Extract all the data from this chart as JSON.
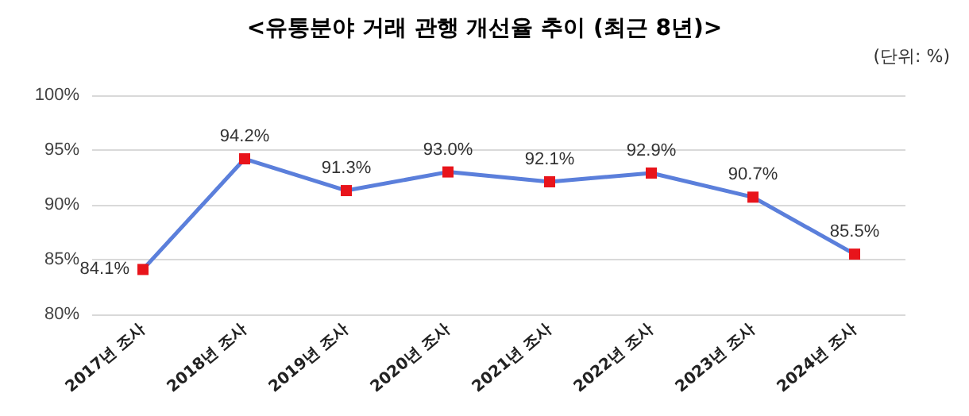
{
  "chart_data": {
    "type": "line",
    "title": "<유통분야 거래 관행 개선율 추이 (최근 8년)>",
    "annotations": [
      "(단위: %)"
    ],
    "categories": [
      "2017년 조사",
      "2018년 조사",
      "2019년 조사",
      "2020년 조사",
      "2021년 조사",
      "2022년 조사",
      "2023년 조사",
      "2024년 조사"
    ],
    "series": [
      {
        "color": "#5b7fdb",
        "colors": [
          "#e8141b",
          "#e8141b",
          "#e8141b",
          "#e8141b",
          "#e8141b",
          "#e8141b",
          "#e8141b",
          "#e8141b"
        ],
        "values": [
          84.1,
          94.2,
          91.3,
          93.0,
          92.1,
          92.9,
          90.7,
          85.5
        ],
        "value_labels": [
          "84.1%",
          "94.2%",
          "91.3%",
          "93.0%",
          "92.1%",
          "92.9%",
          "90.7%",
          "85.5%"
        ]
      }
    ],
    "ylim": [
      80,
      100
    ],
    "yticks": [
      {
        "value": 80,
        "label": "80%"
      },
      {
        "value": 85,
        "label": "85%"
      },
      {
        "value": 90,
        "label": "90%"
      },
      {
        "value": 95,
        "label": "95%"
      },
      {
        "value": 100,
        "label": "100%"
      }
    ],
    "grid": "y",
    "marker": "square",
    "line_style": "solid"
  }
}
